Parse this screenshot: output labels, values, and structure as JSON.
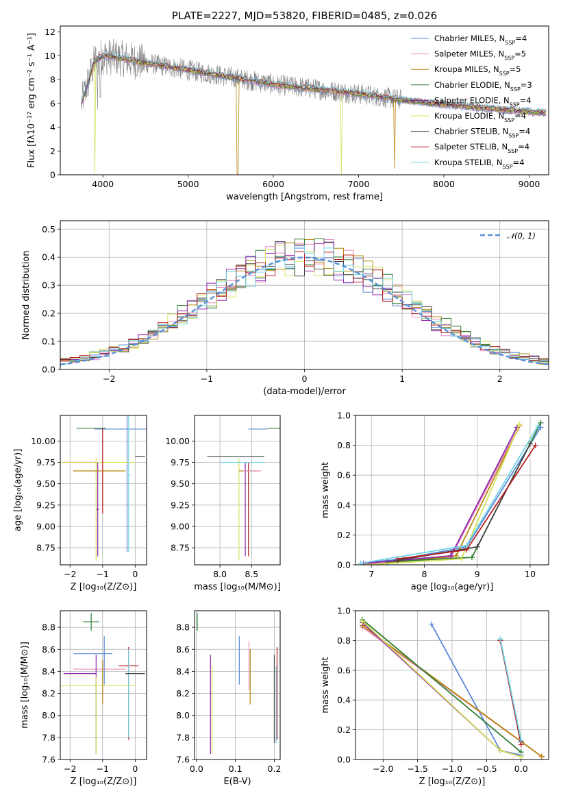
{
  "palette": [
    "#5a86d8",
    "#e88bc2",
    "#b8860b",
    "#2e7d32",
    "#8e24aa",
    "#d4e157",
    "#444444",
    "#b71c1c",
    "#6fd3e6"
  ],
  "chart_data": [
    {
      "id": "spectrum",
      "type": "line",
      "title": "PLATE=2227, MJD=53820, FIBERID=0485, z=0.026",
      "xlabel": "wavelength [Angstrom, rest frame]",
      "ylabel": "Flux [fλ10⁻¹⁷ erg cm⁻² s⁻¹ A⁻¹]",
      "xlim": [
        3500,
        9230
      ],
      "ylim": [
        0,
        12.5
      ],
      "xticks": [
        4000,
        5000,
        6000,
        7000,
        8000,
        9000
      ],
      "yticks": [
        0,
        2,
        4,
        6,
        8,
        10,
        12
      ],
      "grid": false,
      "legend_position": "top-right",
      "legend": [
        "Chabrier MILES, N_SSP=4",
        "Salpeter MILES, N_SSP=5",
        "Kroupa MILES, N_SSP=5",
        "Chabrier ELODIE, N_SSP=3",
        "Salpeter ELODIE, N_SSP=4",
        "Kroupa ELODIE, N_SSP=4",
        "Chabrier STELIB, N_SSP=4",
        "Salpeter STELIB, N_SSP=4",
        "Kroupa STELIB, N_SSP=4"
      ],
      "data_envelope": {
        "x": [
          3750,
          3900,
          4000,
          4200,
          4500,
          5000,
          5500,
          6000,
          6500,
          7000,
          7500,
          8000,
          8500,
          9000,
          9200
        ],
        "y": [
          6.0,
          9.5,
          10.0,
          9.8,
          9.4,
          8.8,
          8.2,
          7.6,
          7.2,
          6.8,
          6.3,
          5.9,
          5.6,
          5.3,
          5.2
        ]
      }
    },
    {
      "id": "residuals",
      "type": "histogram",
      "xlabel": "(data-model)/error",
      "ylabel": "Normed distribution",
      "xlim": [
        -2.5,
        2.5
      ],
      "ylim": [
        0,
        0.53
      ],
      "xticks": [
        -2,
        -1,
        0,
        1,
        2
      ],
      "yticks": [
        0.0,
        0.1,
        0.2,
        0.3,
        0.4,
        0.5
      ],
      "grid": true,
      "legend_position": "top-right",
      "legend": [
        "𝒩(0, 1)"
      ],
      "bin_width": 0.1
    },
    {
      "id": "age-vs-z",
      "type": "scatter",
      "xlabel": "Z [log₁₀(Z/Z⊙)]",
      "ylabel": "age  [log₁₀(age/yr)]",
      "xlim": [
        -2.3,
        0.35
      ],
      "ylim": [
        8.55,
        10.3
      ],
      "xticks": [
        -2,
        -1,
        0
      ],
      "yticks": [
        8.75,
        9.0,
        9.25,
        9.5,
        9.75,
        10.0
      ],
      "grid": true,
      "points": [
        {
          "series": 0,
          "x": -0.3,
          "y": 10.14,
          "xerr": 0.95,
          "yerr": 0.0
        },
        {
          "series": 0,
          "x": -0.25,
          "y": 9.6,
          "xerr": 0.0,
          "yerr": 0.9
        },
        {
          "series": 3,
          "x": -1.35,
          "y": 10.15,
          "xerr": 0.45,
          "yerr": 0.0
        },
        {
          "series": 4,
          "x": -1.15,
          "y": 9.2,
          "xerr": 0.05,
          "yerr": 0.55
        },
        {
          "series": 4,
          "x": -1.7,
          "y": 9.75,
          "xerr": 0.5,
          "yerr": 0.0
        },
        {
          "series": 5,
          "x": -1.2,
          "y": 9.75,
          "xerr": 1.2,
          "yerr": 0.0
        },
        {
          "series": 5,
          "x": -1.2,
          "y": 9.2,
          "xerr": 0.0,
          "yerr": 0.6
        },
        {
          "series": 7,
          "x": -1.0,
          "y": 9.65,
          "xerr": 0.05,
          "yerr": 0.5
        },
        {
          "series": 2,
          "x": -1.1,
          "y": 9.65,
          "xerr": 0.8,
          "yerr": 0.0
        },
        {
          "series": 8,
          "x": -0.2,
          "y": 9.6,
          "xerr": 0.05,
          "yerr": 0.9
        },
        {
          "series": 6,
          "x": 0.15,
          "y": 9.82,
          "xerr": 0.15,
          "yerr": 0.0
        }
      ]
    },
    {
      "id": "age-vs-mass",
      "type": "scatter",
      "xlabel": "mass [log₁₀(M/M⊙)]",
      "ylabel": "",
      "xlim": [
        7.6,
        8.95
      ],
      "ylim": [
        8.55,
        10.3
      ],
      "xticks": [
        8.0,
        8.5
      ],
      "yticks": [
        8.75,
        9.0,
        9.25,
        9.5,
        9.75,
        10.0
      ],
      "grid": true,
      "points": [
        {
          "series": 3,
          "x": 8.85,
          "y": 10.15,
          "xerr": 0.1,
          "yerr": 0.0
        },
        {
          "series": 0,
          "x": 8.6,
          "y": 10.14,
          "xerr": 0.15,
          "yerr": 0.0
        },
        {
          "series": 6,
          "x": 8.25,
          "y": 9.82,
          "xerr": 0.45,
          "yerr": 0.0
        },
        {
          "series": 5,
          "x": 8.3,
          "y": 9.2,
          "xerr": 0.0,
          "yerr": 0.6
        },
        {
          "series": 4,
          "x": 8.4,
          "y": 9.2,
          "xerr": 0.0,
          "yerr": 0.55
        },
        {
          "series": 7,
          "x": 8.45,
          "y": 9.2,
          "xerr": 0.0,
          "yerr": 0.55
        },
        {
          "series": 2,
          "x": 8.45,
          "y": 9.65,
          "xerr": 0.15,
          "yerr": 0.0
        },
        {
          "series": 1,
          "x": 8.5,
          "y": 9.65,
          "xerr": 0.15,
          "yerr": 0.0
        },
        {
          "series": 8,
          "x": 8.35,
          "y": 9.75,
          "xerr": 0.35,
          "yerr": 0.0
        }
      ]
    },
    {
      "id": "weight-vs-age",
      "type": "line",
      "xlabel": "age  [log₁₀(age/yr)]",
      "ylabel": "mass weight",
      "xlim": [
        6.7,
        10.35
      ],
      "ylim": [
        0,
        1.0
      ],
      "xticks": [
        7,
        8,
        9,
        10
      ],
      "yticks": [
        0.0,
        0.2,
        0.4,
        0.6,
        0.8,
        1.0
      ],
      "grid": true,
      "series": [
        {
          "x": [
            6.8,
            7.6,
            8.8,
            10.2
          ],
          "y": [
            0.01,
            0.04,
            0.12,
            0.92
          ]
        },
        {
          "x": [
            6.9,
            8.5,
            9.75
          ],
          "y": [
            0.005,
            0.05,
            0.9
          ]
        },
        {
          "x": [
            7.0,
            8.6,
            9.8
          ],
          "y": [
            0.0,
            0.06,
            0.93
          ]
        },
        {
          "x": [
            7.3,
            8.9,
            10.2
          ],
          "y": [
            0.02,
            0.05,
            0.95
          ]
        },
        {
          "x": [
            6.85,
            8.5,
            9.75
          ],
          "y": [
            0.01,
            0.06,
            0.92
          ]
        },
        {
          "x": [
            6.9,
            8.7,
            9.8
          ],
          "y": [
            0.0,
            0.04,
            0.94
          ]
        },
        {
          "x": [
            7.5,
            9.0,
            10.0
          ],
          "y": [
            0.03,
            0.12,
            0.81
          ]
        },
        {
          "x": [
            7.5,
            8.8,
            10.1
          ],
          "y": [
            0.04,
            0.1,
            0.8
          ]
        },
        {
          "x": [
            6.8,
            8.8,
            10.15
          ],
          "y": [
            0.01,
            0.13,
            0.93
          ]
        }
      ]
    },
    {
      "id": "mass-vs-z",
      "type": "scatter",
      "xlabel": "Z [log₁₀(Z/Z⊙)]",
      "ylabel": "mass [log₁₀(M/M⊙)]",
      "xlim": [
        -2.3,
        0.35
      ],
      "ylim": [
        7.6,
        8.95
      ],
      "xticks": [
        -2,
        -1,
        0
      ],
      "yticks": [
        7.6,
        7.8,
        8.0,
        8.2,
        8.4,
        8.6,
        8.8
      ],
      "grid": true,
      "points": [
        {
          "series": 3,
          "x": -1.35,
          "y": 8.85,
          "xerr": 0.25,
          "yerr": 0.08
        },
        {
          "series": 0,
          "x": -1.3,
          "y": 8.56,
          "xerr": 0.6,
          "yerr": 0.0
        },
        {
          "series": 0,
          "x": -0.95,
          "y": 8.5,
          "xerr": 0.0,
          "yerr": 0.22
        },
        {
          "series": 1,
          "x": -1.1,
          "y": 8.42,
          "xerr": 0.8,
          "yerr": 0.0
        },
        {
          "series": 4,
          "x": -1.2,
          "y": 8.1,
          "xerr": 0.0,
          "yerr": 0.45
        },
        {
          "series": 4,
          "x": -1.7,
          "y": 8.38,
          "xerr": 0.5,
          "yerr": 0.0
        },
        {
          "series": 5,
          "x": -1.2,
          "y": 8.27,
          "xerr": 1.2,
          "yerr": 0.0
        },
        {
          "series": 5,
          "x": -1.2,
          "y": 8.0,
          "xerr": 0.0,
          "yerr": 0.35
        },
        {
          "series": 7,
          "x": -0.2,
          "y": 8.45,
          "xerr": 0.3,
          "yerr": 0.0
        },
        {
          "series": 7,
          "x": -0.2,
          "y": 8.2,
          "xerr": 0.0,
          "yerr": 0.42
        },
        {
          "series": 2,
          "x": -1.0,
          "y": 8.3,
          "xerr": 0.0,
          "yerr": 0.2
        },
        {
          "series": 8,
          "x": -0.2,
          "y": 8.2,
          "xerr": 0.0,
          "yerr": 0.4
        },
        {
          "series": 6,
          "x": 0.0,
          "y": 8.38,
          "xerr": 0.3,
          "yerr": 0.0
        }
      ]
    },
    {
      "id": "mass-vs-ebv",
      "type": "scatter",
      "xlabel": "E(B-V)",
      "ylabel": "",
      "xlim": [
        -0.005,
        0.215
      ],
      "ylim": [
        7.6,
        8.95
      ],
      "xticks": [
        0.0,
        0.1,
        0.2
      ],
      "yticks": [
        7.6,
        7.8,
        8.0,
        8.2,
        8.4,
        8.6,
        8.8
      ],
      "grid": true,
      "points": [
        {
          "series": 3,
          "x": 0.002,
          "y": 8.85,
          "xerr": 0.0,
          "yerr": 0.08
        },
        {
          "series": 4,
          "x": 0.036,
          "y": 8.1,
          "xerr": 0.0,
          "yerr": 0.45
        },
        {
          "series": 5,
          "x": 0.04,
          "y": 8.05,
          "xerr": 0.0,
          "yerr": 0.4
        },
        {
          "series": 0,
          "x": 0.11,
          "y": 8.5,
          "xerr": 0.0,
          "yerr": 0.22
        },
        {
          "series": 1,
          "x": 0.135,
          "y": 8.45,
          "xerr": 0.0,
          "yerr": 0.22
        },
        {
          "series": 2,
          "x": 0.138,
          "y": 8.35,
          "xerr": 0.0,
          "yerr": 0.25
        },
        {
          "series": 8,
          "x": 0.205,
          "y": 8.1,
          "xerr": 0.0,
          "yerr": 0.35
        },
        {
          "series": 7,
          "x": 0.207,
          "y": 8.2,
          "xerr": 0.0,
          "yerr": 0.42
        },
        {
          "series": 6,
          "x": 0.2,
          "y": 8.15,
          "xerr": 0.0,
          "yerr": 0.4
        }
      ]
    },
    {
      "id": "weight-vs-z",
      "type": "line",
      "xlabel": "Z [log₁₀(Z/Z⊙)]",
      "ylabel": "mass weight",
      "xlim": [
        -2.4,
        0.4
      ],
      "ylim": [
        0,
        1.0
      ],
      "xticks": [
        -2.0,
        -1.5,
        -1.0,
        -0.5,
        0.0
      ],
      "yticks": [
        0.0,
        0.2,
        0.4,
        0.6,
        0.8,
        1.0
      ],
      "grid": true,
      "series": [
        {
          "x": [
            -1.3,
            -0.3,
            0.0
          ],
          "y": [
            0.91,
            0.06,
            0.03
          ]
        },
        {
          "x": [
            -2.3,
            0.3
          ],
          "y": [
            0.89,
            0.02
          ]
        },
        {
          "x": [
            -2.3,
            0.3
          ],
          "y": [
            0.9,
            0.02
          ]
        },
        {
          "x": [
            -2.3,
            0.0
          ],
          "y": [
            0.94,
            0.05
          ]
        },
        {
          "x": [
            -2.3,
            -0.3,
            0.0
          ],
          "y": [
            0.92,
            0.06,
            0.02
          ]
        },
        {
          "x": [
            -2.3,
            -0.3,
            0.0
          ],
          "y": [
            0.93,
            0.06,
            0.02
          ]
        },
        {
          "x": [
            -0.3,
            0.0
          ],
          "y": [
            0.8,
            0.12
          ]
        },
        {
          "x": [
            -0.3,
            0.0
          ],
          "y": [
            0.8,
            0.1
          ]
        },
        {
          "x": [
            -0.3,
            0.0
          ],
          "y": [
            0.81,
            0.13
          ]
        }
      ]
    }
  ]
}
